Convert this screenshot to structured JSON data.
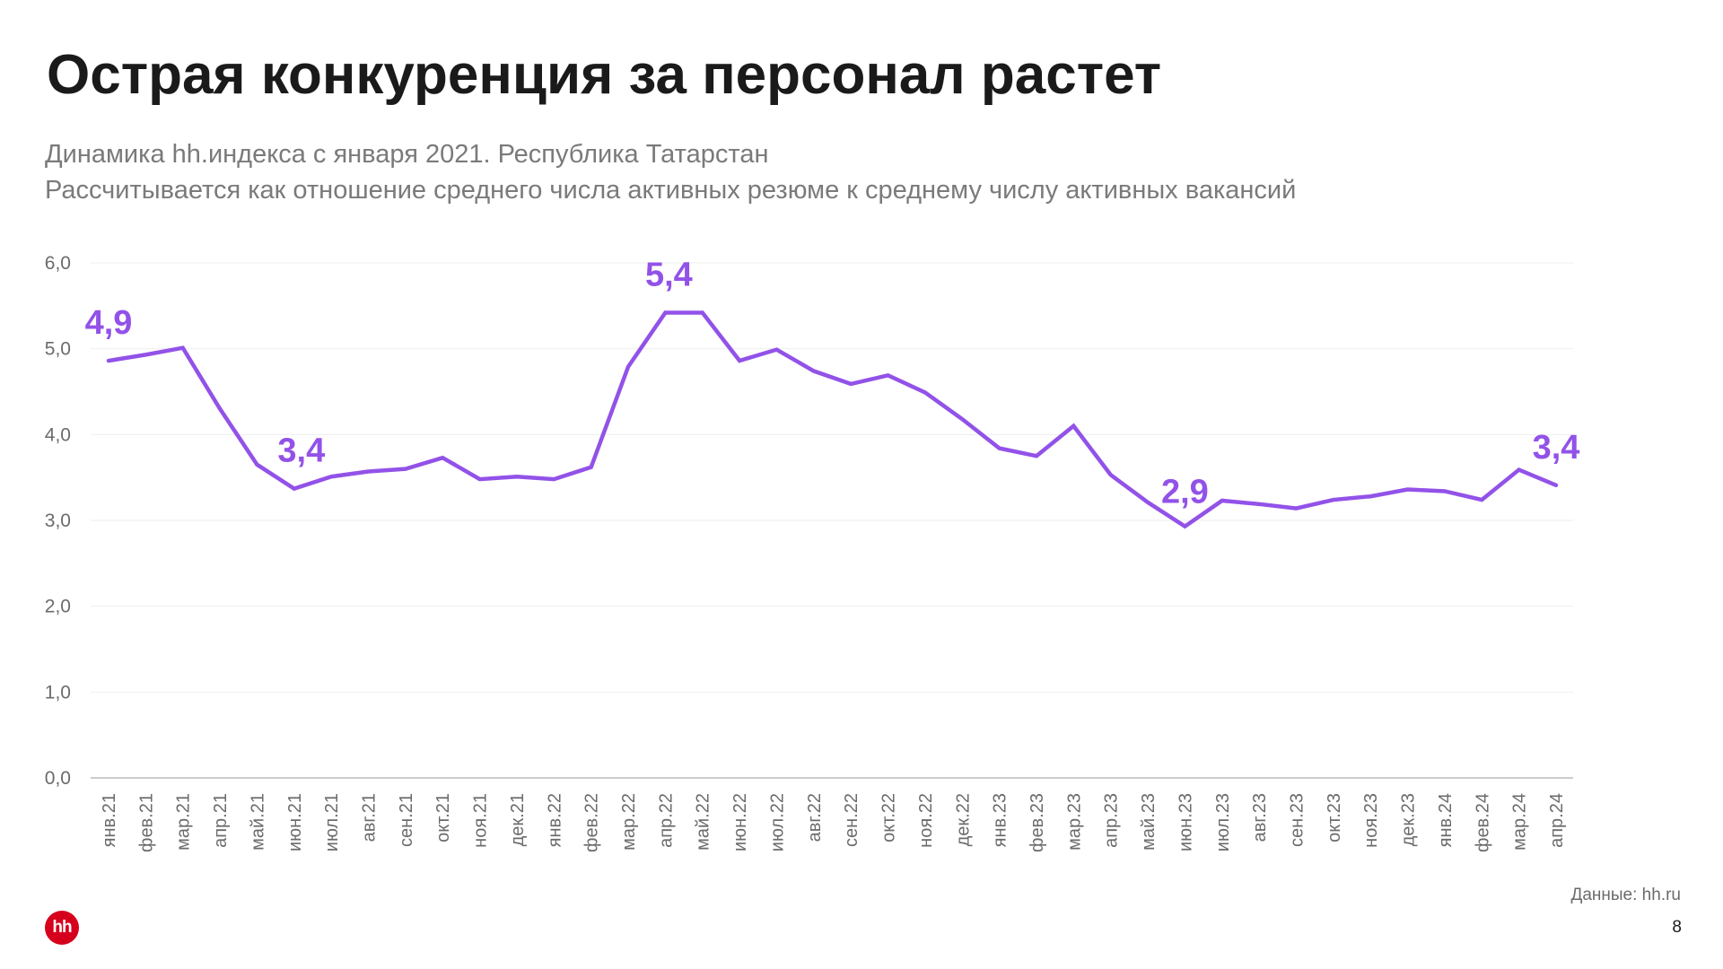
{
  "title": "Острая конкуренция за персонал растет",
  "subtitle1": "Динамика hh.индекса с января 2021. Республика Татарстан",
  "subtitle2": "Рассчитывается как отношение среднего числа активных резюме к среднему числу активных вакансий",
  "source": "Данные: hh.ru",
  "page_number": "8",
  "logo_text": "hh",
  "colors": {
    "line": "#9252E8",
    "grid": "#eeeeee",
    "axis": "#bbbbbb",
    "tick": "#6b6b6b"
  },
  "chart_data": {
    "type": "line",
    "title": "",
    "xlabel": "",
    "ylabel": "",
    "ylim": [
      0,
      6
    ],
    "yticks": [
      "0,0",
      "1,0",
      "2,0",
      "3,0",
      "4,0",
      "5,0",
      "6,0"
    ],
    "grid": true,
    "categories": [
      "янв.21",
      "фев.21",
      "мар.21",
      "апр.21",
      "май.21",
      "июн.21",
      "июл.21",
      "авг.21",
      "сен.21",
      "окт.21",
      "ноя.21",
      "дек.21",
      "янв.22",
      "фев.22",
      "мар.22",
      "апр.22",
      "май.22",
      "июн.22",
      "июл.22",
      "авг.22",
      "сен.22",
      "окт.22",
      "ноя.22",
      "дек.22",
      "янв.23",
      "фев.23",
      "мар.23",
      "апр.23",
      "май.23",
      "июн.23",
      "июл.23",
      "авг.23",
      "сен.23",
      "окт.23",
      "ноя.23",
      "дек.23",
      "янв.24",
      "фев.24",
      "мар.24",
      "апр.24"
    ],
    "series": [
      {
        "name": "hh.индекс",
        "values": [
          4.86,
          4.93,
          5.01,
          4.3,
          3.65,
          3.37,
          3.51,
          3.57,
          3.6,
          3.73,
          3.48,
          3.51,
          3.48,
          3.62,
          4.79,
          5.42,
          5.42,
          4.86,
          4.99,
          4.74,
          4.59,
          4.69,
          4.49,
          4.18,
          3.84,
          3.75,
          4.1,
          3.53,
          3.21,
          2.93,
          3.23,
          3.19,
          3.14,
          3.24,
          3.28,
          3.36,
          3.34,
          3.24,
          3.59,
          3.41
        ]
      }
    ],
    "annotations": [
      {
        "index": 0,
        "text": "4,9"
      },
      {
        "index": 5,
        "text": "3,4"
      },
      {
        "index": 15,
        "text": "5,4"
      },
      {
        "index": 29,
        "text": "2,9"
      },
      {
        "index": 39,
        "text": "3,4"
      }
    ]
  }
}
